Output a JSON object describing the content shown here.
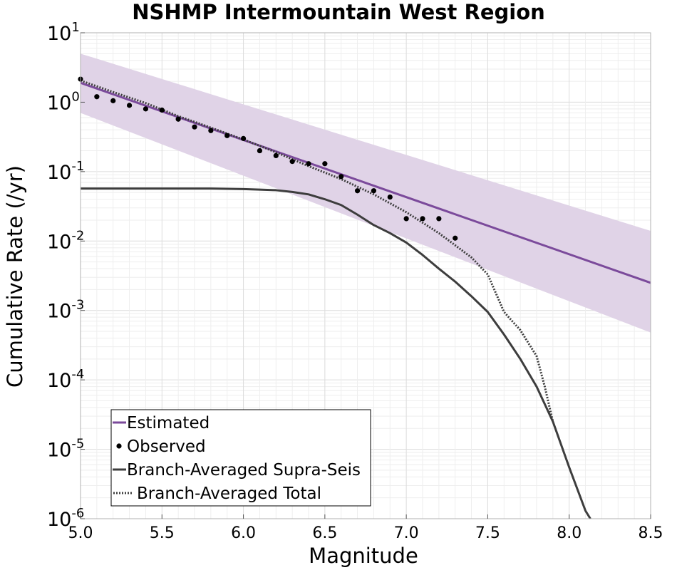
{
  "chart_data": {
    "type": "line",
    "title": "NSHMP Intermountain West Region",
    "xlabel": "Magnitude",
    "ylabel": "Cumulative Rate (/yr)",
    "xlim": [
      5.0,
      8.5
    ],
    "ylim": [
      1e-06,
      10
    ],
    "yscale": "log",
    "grid": true,
    "legend_position": "bottom-left",
    "x_ticks": [
      "5.0",
      "5.5",
      "6.0",
      "6.5",
      "7.0",
      "7.5",
      "8.0",
      "8.5"
    ],
    "y_ticks": [
      {
        "base": "10",
        "exp": "1",
        "value": 10
      },
      {
        "base": "10",
        "exp": "0",
        "value": 1
      },
      {
        "base": "10",
        "exp": "-1",
        "value": 0.1
      },
      {
        "base": "10",
        "exp": "-2",
        "value": 0.01
      },
      {
        "base": "10",
        "exp": "-3",
        "value": 0.001
      },
      {
        "base": "10",
        "exp": "-4",
        "value": 0.0001
      },
      {
        "base": "10",
        "exp": "-5",
        "value": 1e-05
      },
      {
        "base": "10",
        "exp": "-6",
        "value": 1e-06
      }
    ],
    "band": {
      "color": "#e0d3e7",
      "upper": {
        "x": [
          5.0,
          8.5
        ],
        "y": [
          5.0,
          0.014
        ]
      },
      "lower": {
        "x": [
          5.0,
          8.5
        ],
        "y": [
          0.7,
          0.00048
        ]
      }
    },
    "series": [
      {
        "name": "Estimated",
        "style": "solid",
        "color": "#7b4a9b",
        "x": [
          5.0,
          8.5
        ],
        "y": [
          1.9,
          0.0025
        ]
      },
      {
        "name": "Observed",
        "style": "points",
        "color": "#000000",
        "x": [
          5.0,
          5.1,
          5.2,
          5.3,
          5.4,
          5.5,
          5.6,
          5.7,
          5.8,
          5.9,
          6.0,
          6.1,
          6.2,
          6.3,
          6.4,
          6.5,
          6.6,
          6.7,
          6.8,
          6.9,
          7.0,
          7.1,
          7.2,
          7.3
        ],
        "y": [
          2.15,
          1.2,
          1.05,
          0.9,
          0.8,
          0.77,
          0.57,
          0.44,
          0.39,
          0.33,
          0.3,
          0.2,
          0.17,
          0.14,
          0.13,
          0.13,
          0.085,
          0.053,
          0.053,
          0.043,
          0.021,
          0.021,
          0.021,
          0.011
        ]
      },
      {
        "name": "Branch-Averaged Supra-Seis",
        "style": "solid",
        "color": "#3d3d3d",
        "x": [
          5.0,
          5.5,
          5.8,
          6.0,
          6.1,
          6.2,
          6.3,
          6.4,
          6.5,
          6.6,
          6.7,
          6.8,
          6.9,
          7.0,
          7.1,
          7.2,
          7.3,
          7.4,
          7.5,
          7.6,
          7.7,
          7.8,
          7.9,
          8.0,
          8.1,
          8.13
        ],
        "y": [
          0.057,
          0.057,
          0.057,
          0.056,
          0.055,
          0.054,
          0.051,
          0.047,
          0.04,
          0.033,
          0.024,
          0.017,
          0.013,
          0.0095,
          0.0063,
          0.004,
          0.0026,
          0.0016,
          0.00095,
          0.00045,
          0.0002,
          8e-05,
          2.5e-05,
          5.5e-06,
          1.3e-06,
          1e-06
        ]
      },
      {
        "name": "Branch-Averaged Total",
        "style": "dotted",
        "color": "#3d3d3d",
        "x": [
          5.0,
          5.2,
          5.4,
          5.6,
          5.8,
          6.0,
          6.2,
          6.4,
          6.6,
          6.8,
          7.0,
          7.2,
          7.4,
          7.5,
          7.6,
          7.7,
          7.8,
          7.85,
          7.9
        ],
        "y": [
          2.05,
          1.4,
          0.97,
          0.63,
          0.43,
          0.29,
          0.19,
          0.12,
          0.078,
          0.047,
          0.026,
          0.013,
          0.0058,
          0.0033,
          0.00095,
          0.00052,
          0.00022,
          8e-05,
          2.5e-05
        ]
      }
    ],
    "legend": {
      "items": [
        {
          "label": "Estimated",
          "style": "solid",
          "color": "#7b4a9b"
        },
        {
          "label": "Observed",
          "style": "points",
          "color": "#000000"
        },
        {
          "label": "Branch-Averaged Supra-Seis",
          "style": "solid",
          "color": "#3d3d3d"
        },
        {
          "label": "Branch-Averaged Total",
          "style": "dotted",
          "color": "#3d3d3d"
        }
      ]
    }
  }
}
